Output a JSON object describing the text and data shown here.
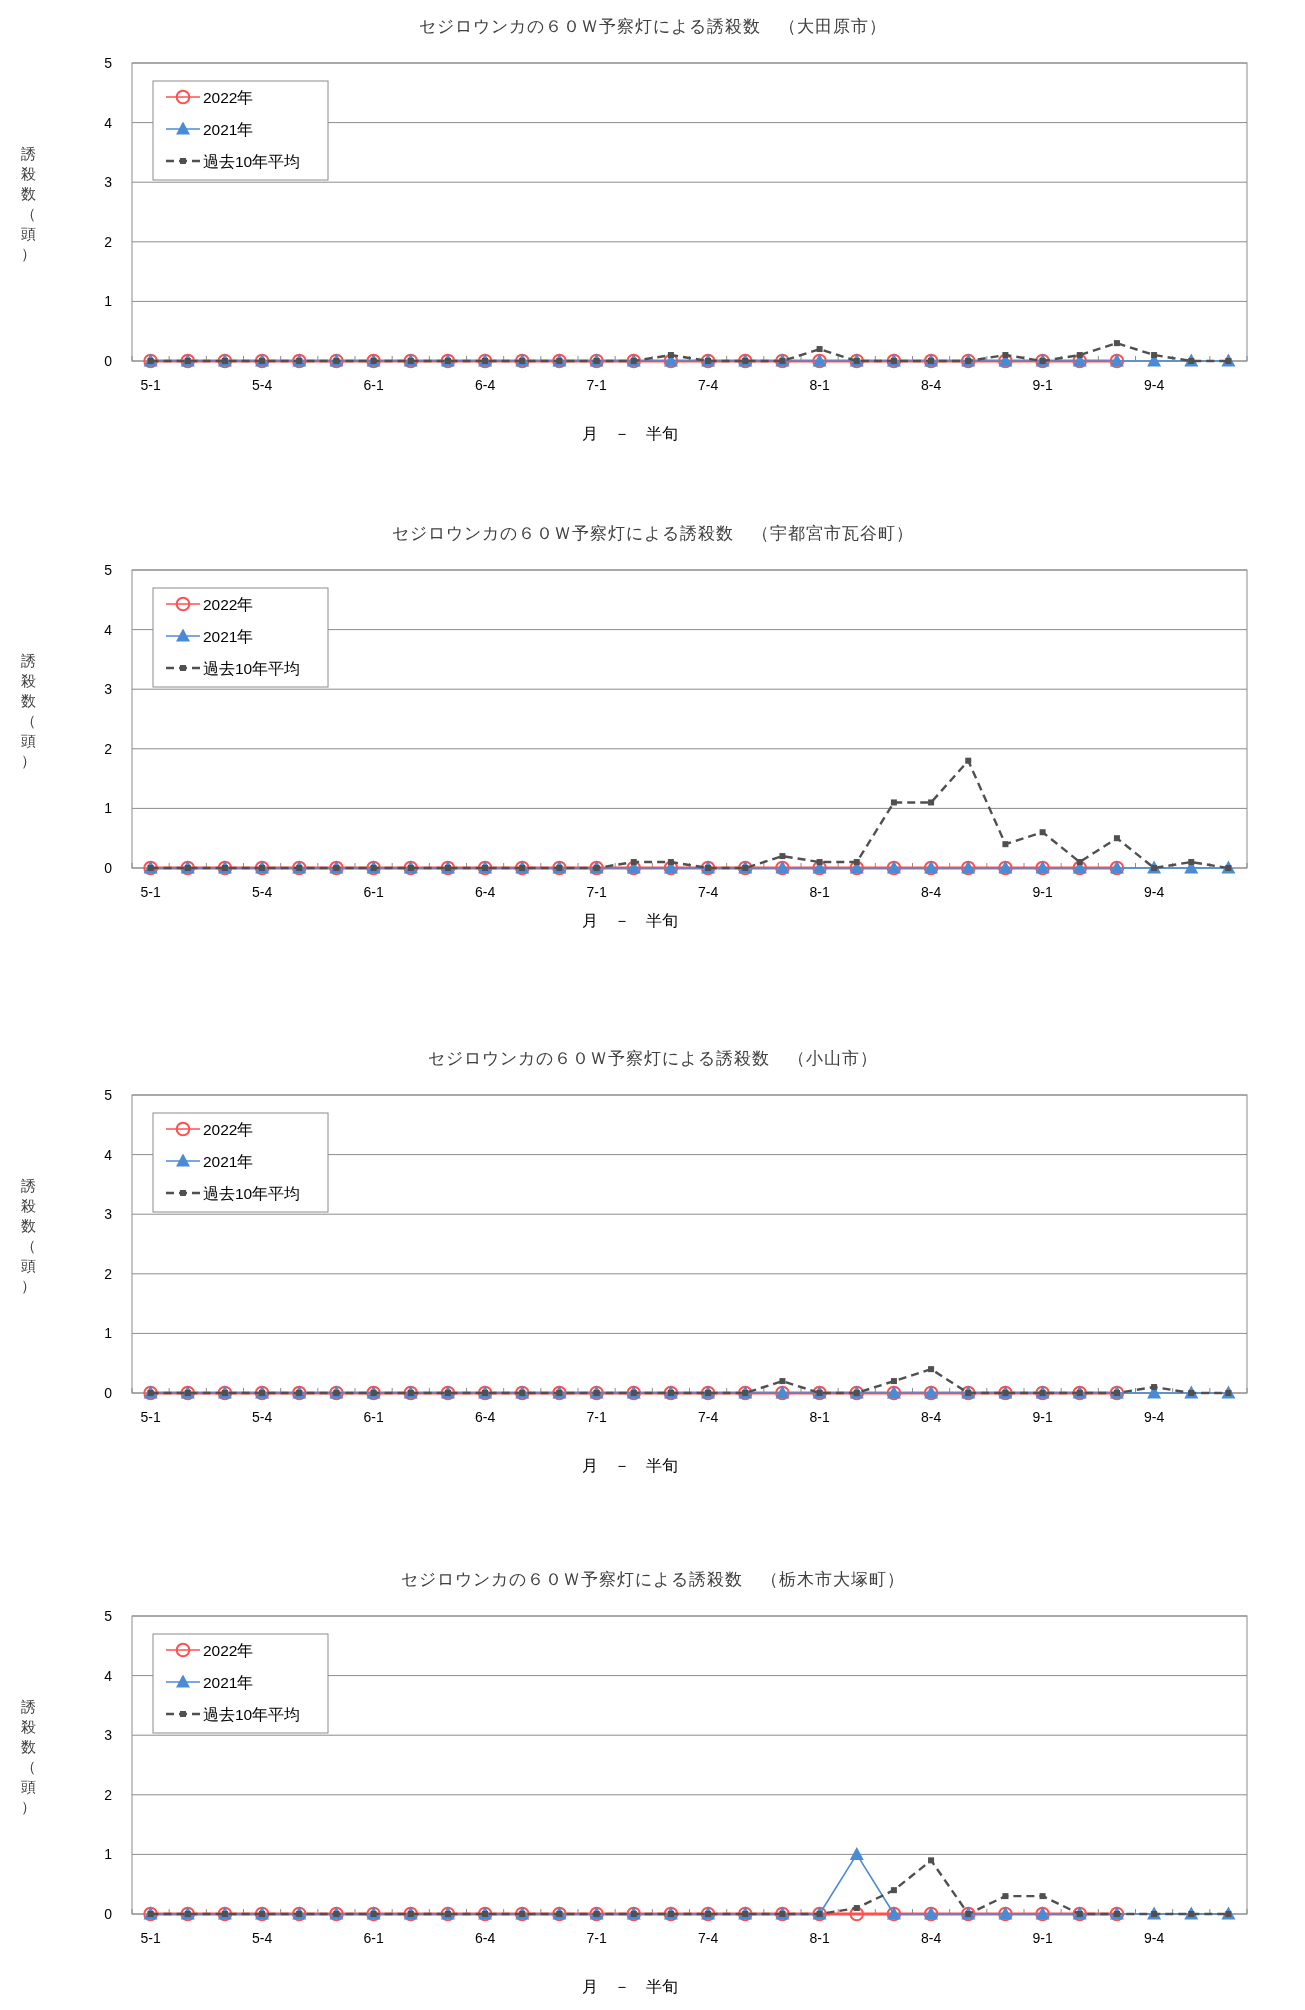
{
  "chart_data": [
    {
      "type": "line",
      "title": "セジロウンカの６０Ｗ予察灯による誘殺数　（大田原市）",
      "xlabel": "月　－　半旬",
      "ylabel": "誘殺数（頭）",
      "categories": [
        "5-1",
        null,
        null,
        "5-4",
        null,
        null,
        "6-1",
        null,
        null,
        "6-4",
        null,
        null,
        "7-1",
        null,
        null,
        "7-4",
        null,
        null,
        "8-1",
        null,
        null,
        "8-4",
        null,
        null,
        "9-1",
        null,
        null,
        "9-4",
        null,
        null
      ],
      "ylim": [
        0,
        5
      ],
      "yticks": [
        0,
        1,
        2,
        3,
        4,
        5
      ],
      "grid": "y",
      "legend": "top left",
      "series": [
        {
          "name": "2022年",
          "color": "#ff5050",
          "marker": "circle",
          "line_style": "solid",
          "values": [
            0,
            0,
            0,
            0,
            0,
            0,
            0,
            0,
            0,
            0,
            0,
            0,
            0,
            0,
            0,
            0,
            0,
            0,
            0,
            0,
            0,
            0,
            0,
            0,
            0,
            0,
            0,
            null,
            null,
            null
          ]
        },
        {
          "name": "2021年",
          "color": "#4a8bd6",
          "marker": "triangle",
          "line_style": "solid",
          "values": [
            0,
            0,
            0,
            0,
            0,
            0,
            0,
            0,
            0,
            0,
            0,
            0,
            0,
            0,
            0,
            0,
            0,
            0,
            0,
            0,
            0,
            0,
            0,
            0,
            0,
            0,
            0,
            0,
            0,
            0
          ]
        },
        {
          "name": "過去10年平均",
          "color": "#505050",
          "marker": "square",
          "line_style": "dashed",
          "values": [
            0,
            0,
            0,
            0,
            0,
            0,
            0,
            0,
            0,
            0,
            0,
            0,
            0,
            0,
            0.1,
            0,
            0,
            0,
            0.2,
            0,
            0,
            0,
            0,
            0.1,
            0,
            0.1,
            0.3,
            0.1,
            0,
            0
          ]
        }
      ]
    },
    {
      "type": "line",
      "title": "セジロウンカの６０Ｗ予察灯による誘殺数　（宇都宮市瓦谷町）",
      "xlabel": "月　－　半旬",
      "ylabel": "誘殺数（頭）",
      "categories": [
        "5-1",
        null,
        null,
        "5-4",
        null,
        null,
        "6-1",
        null,
        null,
        "6-4",
        null,
        null,
        "7-1",
        null,
        null,
        "7-4",
        null,
        null,
        "8-1",
        null,
        null,
        "8-4",
        null,
        null,
        "9-1",
        null,
        null,
        "9-4",
        null,
        null
      ],
      "ylim": [
        0,
        5
      ],
      "yticks": [
        0,
        1,
        2,
        3,
        4,
        5
      ],
      "grid": "y",
      "legend": "top left",
      "series": [
        {
          "name": "2022年",
          "color": "#ff5050",
          "marker": "circle",
          "line_style": "solid",
          "values": [
            0,
            0,
            0,
            0,
            0,
            0,
            0,
            0,
            0,
            0,
            0,
            0,
            0,
            0,
            0,
            0,
            0,
            0,
            0,
            0,
            0,
            0,
            0,
            0,
            0,
            0,
            0,
            null,
            null,
            null
          ]
        },
        {
          "name": "2021年",
          "color": "#4a8bd6",
          "marker": "triangle",
          "line_style": "solid",
          "values": [
            0,
            0,
            0,
            0,
            0,
            0,
            0,
            0,
            0,
            0,
            0,
            0,
            0,
            0,
            0,
            0,
            0,
            0,
            0,
            0,
            0,
            0,
            0,
            0,
            0,
            0,
            0,
            0,
            0,
            0
          ]
        },
        {
          "name": "過去10年平均",
          "color": "#505050",
          "marker": "square",
          "line_style": "dashed",
          "values": [
            0,
            0,
            0,
            0,
            0,
            0,
            0,
            0,
            0,
            0,
            0,
            0,
            0,
            0.1,
            0.1,
            0,
            0,
            0.2,
            0.1,
            0.1,
            1.1,
            1.1,
            1.8,
            0.4,
            0.6,
            0.1,
            0.5,
            0,
            0.1,
            0
          ]
        }
      ]
    },
    {
      "type": "line",
      "title": "セジロウンカの６０Ｗ予察灯による誘殺数　（小山市）",
      "xlabel": "月　－　半旬",
      "ylabel": "誘殺数（頭）",
      "categories": [
        "5-1",
        null,
        null,
        "5-4",
        null,
        null,
        "6-1",
        null,
        null,
        "6-4",
        null,
        null,
        "7-1",
        null,
        null,
        "7-4",
        null,
        null,
        "8-1",
        null,
        null,
        "8-4",
        null,
        null,
        "9-1",
        null,
        null,
        "9-4",
        null,
        null
      ],
      "ylim": [
        0,
        5
      ],
      "yticks": [
        0,
        1,
        2,
        3,
        4,
        5
      ],
      "grid": "y",
      "legend": "top left",
      "series": [
        {
          "name": "2022年",
          "color": "#ff5050",
          "marker": "circle",
          "line_style": "solid",
          "values": [
            0,
            0,
            0,
            0,
            0,
            0,
            0,
            0,
            0,
            0,
            0,
            0,
            0,
            0,
            0,
            0,
            0,
            0,
            0,
            0,
            0,
            0,
            0,
            0,
            0,
            0,
            0,
            null,
            null,
            null
          ]
        },
        {
          "name": "2021年",
          "color": "#4a8bd6",
          "marker": "triangle",
          "line_style": "solid",
          "values": [
            0,
            0,
            0,
            0,
            0,
            0,
            0,
            0,
            0,
            0,
            0,
            0,
            0,
            0,
            0,
            0,
            0,
            0,
            0,
            0,
            0,
            0,
            0,
            0,
            0,
            0,
            0,
            0,
            0,
            0
          ]
        },
        {
          "name": "過去10年平均",
          "color": "#505050",
          "marker": "square",
          "line_style": "dashed",
          "values": [
            0,
            0,
            0,
            0,
            0,
            0,
            0,
            0,
            0,
            0,
            0,
            0,
            0,
            0,
            0,
            0,
            0,
            0.2,
            0,
            0,
            0.2,
            0.4,
            0,
            0,
            0,
            0,
            0,
            0.1,
            0,
            0
          ]
        }
      ]
    },
    {
      "type": "line",
      "title": "セジロウンカの６０Ｗ予察灯による誘殺数　（栃木市大塚町）",
      "xlabel": "月　－　半旬",
      "ylabel": "誘殺数（頭）",
      "categories": [
        "5-1",
        null,
        null,
        "5-4",
        null,
        null,
        "6-1",
        null,
        null,
        "6-4",
        null,
        null,
        "7-1",
        null,
        null,
        "7-4",
        null,
        null,
        "8-1",
        null,
        null,
        "8-4",
        null,
        null,
        "9-1",
        null,
        null,
        "9-4",
        null,
        null
      ],
      "ylim": [
        0,
        5
      ],
      "yticks": [
        0,
        1,
        2,
        3,
        4,
        5
      ],
      "grid": "y",
      "legend": "top left",
      "series": [
        {
          "name": "2022年",
          "color": "#ff5050",
          "marker": "circle",
          "line_style": "solid",
          "values": [
            0,
            0,
            0,
            0,
            0,
            0,
            0,
            0,
            0,
            0,
            0,
            0,
            0,
            0,
            0,
            0,
            0,
            0,
            0,
            0,
            0,
            0,
            0,
            0,
            0,
            0,
            0,
            null,
            null,
            null
          ]
        },
        {
          "name": "2021年",
          "color": "#4a8bd6",
          "marker": "triangle",
          "line_style": "solid",
          "values": [
            0,
            0,
            0,
            0,
            0,
            0,
            0,
            0,
            0,
            0,
            0,
            0,
            0,
            0,
            0,
            0,
            0,
            0,
            0,
            1,
            0,
            0,
            0,
            0,
            0,
            0,
            0,
            0,
            0,
            0
          ]
        },
        {
          "name": "過去10年平均",
          "color": "#505050",
          "marker": "square",
          "line_style": "dashed",
          "values": [
            0,
            0,
            0,
            0,
            0,
            0,
            0,
            0,
            0,
            0,
            0,
            0,
            0,
            0,
            0,
            0,
            0,
            0,
            0,
            0.1,
            0.4,
            0.9,
            0,
            0.3,
            0.3,
            0,
            0,
            0,
            0,
            0
          ]
        }
      ]
    }
  ]
}
